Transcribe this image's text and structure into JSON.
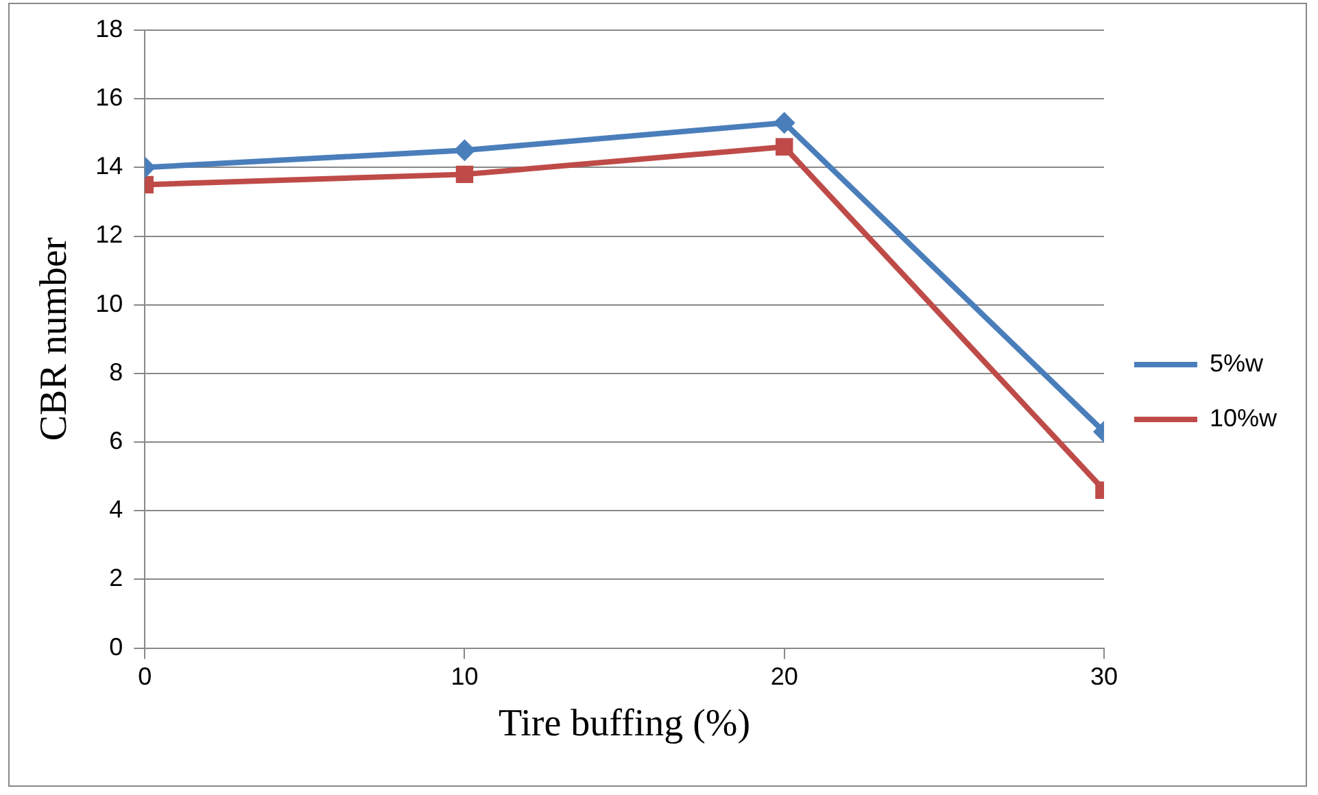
{
  "chart_data": {
    "type": "line",
    "xlabel": "Tire buffing (%)",
    "ylabel": "CBR number",
    "x": [
      0,
      10,
      20,
      30
    ],
    "series": [
      {
        "name": "5%w",
        "color": "#4a7ebb",
        "marker": "diamond",
        "values": [
          14.0,
          14.5,
          15.3,
          6.3
        ]
      },
      {
        "name": "10%w",
        "color": "#be4b48",
        "marker": "square",
        "values": [
          13.5,
          13.8,
          14.6,
          4.6
        ]
      }
    ],
    "xlim": [
      0,
      30
    ],
    "xticks": [
      0,
      10,
      20,
      30
    ],
    "ylim": [
      0,
      18
    ],
    "yticks": [
      0,
      2,
      4,
      6,
      8,
      10,
      12,
      14,
      16,
      18
    ],
    "grid": "y",
    "legend": "right"
  }
}
